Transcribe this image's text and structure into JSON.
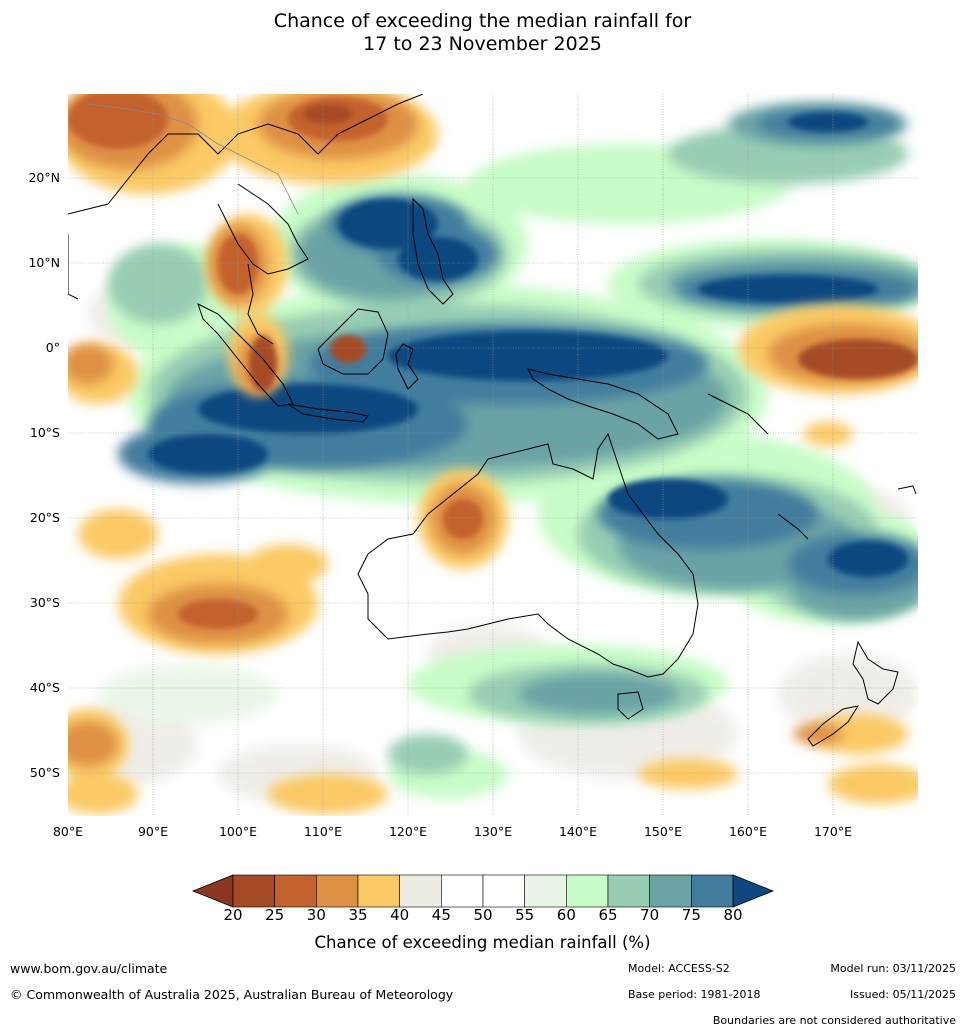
{
  "title": {
    "line1": "Chance of exceeding the median rainfall for",
    "line2": "17 to 23 November 2025"
  },
  "map": {
    "latitude_labels": [
      "20°N",
      "10°N",
      "0°",
      "10°S",
      "20°S",
      "30°S",
      "40°S",
      "50°S"
    ],
    "longitude_labels": [
      "80°E",
      "90°E",
      "100°E",
      "110°E",
      "120°E",
      "130°E",
      "140°E",
      "150°E",
      "160°E",
      "170°E"
    ]
  },
  "colorbar": {
    "ticks": [
      "20",
      "25",
      "30",
      "35",
      "40",
      "45",
      "50",
      "55",
      "60",
      "65",
      "70",
      "75",
      "80"
    ],
    "colors": [
      "#a64b25",
      "#c4622f",
      "#de9045",
      "#fbc965",
      "#efece6",
      "#ffffff",
      "#ffffff",
      "#e8f6e6",
      "#c8fcc8",
      "#98cdb4",
      "#6ba3a6",
      "#437d9e"
    ],
    "under_color": "#8c3520",
    "over_color": "#10477f",
    "label": "Chance of exceeding median rainfall (%)"
  },
  "footer": {
    "website": "www.bom.gov.au/climate",
    "copyright": "© Commonwealth of Australia 2025, Australian Bureau of Meteorology",
    "model": "Model: ACCESS-S2",
    "base_period": "Base period: 1981-2018",
    "model_run": "Model run: 03/11/2025",
    "issued": "Issued: 05/11/2025",
    "disclaimer": "Boundaries are not considered authoritative"
  }
}
